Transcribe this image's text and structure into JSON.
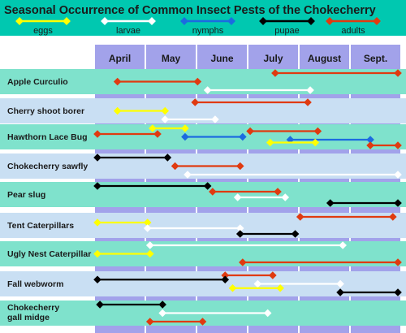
{
  "chart_data": {
    "type": "gantt",
    "title": "Seasonal Occurrence of Common Insect Pests of the Chokecherry",
    "x_unit": "month",
    "x_range": [
      0,
      6
    ],
    "months": [
      "April",
      "May",
      "June",
      "July",
      "August",
      "Sept."
    ],
    "stages": [
      {
        "key": "eggs",
        "label": "eggs",
        "color": "#ffff00"
      },
      {
        "key": "larvae",
        "label": "larvae",
        "color": "#ffffff"
      },
      {
        "key": "nymphs",
        "label": "nymphs",
        "color": "#1c6be0"
      },
      {
        "key": "pupae",
        "label": "pupae",
        "color": "#000000"
      },
      {
        "key": "adults",
        "label": "adults",
        "color": "#e03a10"
      }
    ],
    "colors": {
      "header_bg": "#00c8b0",
      "month_col": "#a2a2ea",
      "row_band_a": "#7fe2cc",
      "row_band_b": "#c9dff3"
    },
    "pests": [
      {
        "name": [
          "Apple Curculio"
        ],
        "bars": [
          {
            "stage": "adults",
            "start": 3.55,
            "end": 6.0
          },
          {
            "stage": "adults",
            "start": 0.4,
            "end": 2.0
          },
          {
            "stage": "larvae",
            "start": 2.2,
            "end": 4.25
          }
        ]
      },
      {
        "name": [
          "Cherry shoot borer"
        ],
        "bars": [
          {
            "stage": "adults",
            "start": 1.95,
            "end": 4.2
          },
          {
            "stage": "eggs",
            "start": 0.4,
            "end": 1.35
          },
          {
            "stage": "larvae",
            "start": 1.35,
            "end": 2.35
          }
        ]
      },
      {
        "name": [
          "Hawthorn Lace Bug"
        ],
        "bars": [
          {
            "stage": "eggs",
            "start": 1.1,
            "end": 1.75
          },
          {
            "stage": "adults",
            "start": 3.05,
            "end": 4.4
          },
          {
            "stage": "adults",
            "start": 0.0,
            "end": 1.2
          },
          {
            "stage": "nymphs",
            "start": 1.75,
            "end": 2.9
          },
          {
            "stage": "nymphs",
            "start": 3.85,
            "end": 5.45
          },
          {
            "stage": "eggs",
            "start": 3.45,
            "end": 4.35
          },
          {
            "stage": "adults",
            "start": 5.45,
            "end": 6.0
          }
        ]
      },
      {
        "name": [
          "Chokecherry sawfly"
        ],
        "bars": [
          {
            "stage": "pupae",
            "start": 0.0,
            "end": 1.4
          },
          {
            "stage": "adults",
            "start": 1.55,
            "end": 2.85
          },
          {
            "stage": "larvae",
            "start": 1.8,
            "end": 6.0
          }
        ]
      },
      {
        "name": [
          "Pear slug"
        ],
        "bars": [
          {
            "stage": "pupae",
            "start": 0.0,
            "end": 2.2
          },
          {
            "stage": "adults",
            "start": 2.3,
            "end": 3.6
          },
          {
            "stage": "larvae",
            "start": 2.8,
            "end": 3.75
          },
          {
            "stage": "pupae",
            "start": 4.65,
            "end": 6.0
          }
        ]
      },
      {
        "name": [
          "Tent Caterpillars"
        ],
        "bars": [
          {
            "stage": "adults",
            "start": 4.05,
            "end": 5.9
          },
          {
            "stage": "eggs",
            "start": 0.0,
            "end": 1.0
          },
          {
            "stage": "larvae",
            "start": 1.0,
            "end": 2.85
          },
          {
            "stage": "pupae",
            "start": 2.85,
            "end": 3.95
          }
        ]
      },
      {
        "name": [
          "Ugly Nest Caterpillar"
        ],
        "bars": [
          {
            "stage": "larvae",
            "start": 1.05,
            "end": 4.9
          },
          {
            "stage": "eggs",
            "start": 0.0,
            "end": 1.05
          },
          {
            "stage": "adults",
            "start": 2.9,
            "end": 6.0
          }
        ]
      },
      {
        "name": [
          "Fall webworm"
        ],
        "bars": [
          {
            "stage": "adults",
            "start": 2.55,
            "end": 3.5
          },
          {
            "stage": "pupae",
            "start": 0.0,
            "end": 2.55
          },
          {
            "stage": "larvae",
            "start": 3.2,
            "end": 4.85
          },
          {
            "stage": "eggs",
            "start": 2.7,
            "end": 3.65
          },
          {
            "stage": "pupae",
            "start": 4.85,
            "end": 6.0
          }
        ]
      },
      {
        "name": [
          "Chokecherry",
          "gall midge"
        ],
        "bars": [
          {
            "stage": "pupae",
            "start": 0.05,
            "end": 1.3
          },
          {
            "stage": "larvae",
            "start": 1.3,
            "end": 3.4
          },
          {
            "stage": "adults",
            "start": 1.05,
            "end": 2.1
          }
        ]
      }
    ]
  }
}
